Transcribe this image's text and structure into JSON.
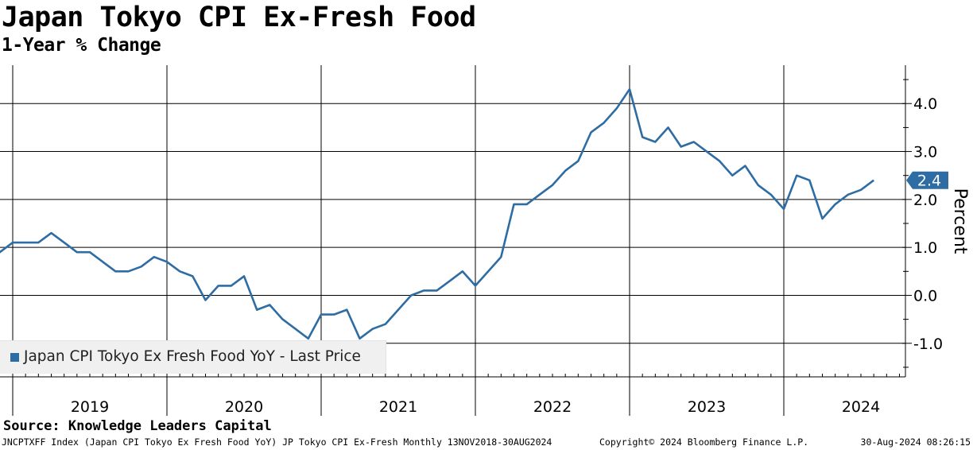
{
  "header": {
    "title": "Japan Tokyo CPI Ex-Fresh Food",
    "subtitle": "1-Year % Change"
  },
  "footer": {
    "source": "Source: Knowledge Leaders Capital",
    "ticker_line": "JNCPTXFF Index (Japan CPI Tokyo Ex Fresh Food YoY) JP Tokyo CPI Ex-Fresh  Monthly 13NOV2018-30AUG2024",
    "copyright": "Copyright© 2024 Bloomberg Finance L.P.",
    "timestamp": "30-Aug-2024 08:26:15"
  },
  "colors": {
    "series": "#2e6da4",
    "grid": "#000000",
    "legend_bg": "#f0f0f0"
  },
  "legend": {
    "label": "Japan CPI Tokyo Ex Fresh Food YoY - Last Price",
    "placement": "bottom-left"
  },
  "chart_data": {
    "type": "line",
    "title": "Japan Tokyo CPI Ex-Fresh Food",
    "subtitle": "1-Year % Change",
    "ylabel": "Percent",
    "xlabel": "",
    "ylim": [
      -1.7,
      4.8
    ],
    "yticks": [
      -1.0,
      0.0,
      1.0,
      2.0,
      3.0,
      4.0
    ],
    "ytick_labels": [
      "-1.0",
      "0.0",
      "1.0",
      "2.0",
      "3.0",
      "4.0"
    ],
    "year_labels": [
      "2019",
      "2020",
      "2021",
      "2022",
      "2023",
      "2024"
    ],
    "grid": true,
    "last_value_label": "2.4",
    "series": [
      {
        "name": "Japan CPI Tokyo Ex Fresh Food YoY - Last Price",
        "x": [
          "2018-11",
          "2018-12",
          "2019-01",
          "2019-02",
          "2019-03",
          "2019-04",
          "2019-05",
          "2019-06",
          "2019-07",
          "2019-08",
          "2019-09",
          "2019-10",
          "2019-11",
          "2019-12",
          "2020-01",
          "2020-02",
          "2020-03",
          "2020-04",
          "2020-05",
          "2020-06",
          "2020-07",
          "2020-08",
          "2020-09",
          "2020-10",
          "2020-11",
          "2020-12",
          "2021-01",
          "2021-02",
          "2021-03",
          "2021-04",
          "2021-05",
          "2021-06",
          "2021-07",
          "2021-08",
          "2021-09",
          "2021-10",
          "2021-11",
          "2021-12",
          "2022-01",
          "2022-02",
          "2022-03",
          "2022-04",
          "2022-05",
          "2022-06",
          "2022-07",
          "2022-08",
          "2022-09",
          "2022-10",
          "2022-11",
          "2022-12",
          "2023-01",
          "2023-02",
          "2023-03",
          "2023-04",
          "2023-05",
          "2023-06",
          "2023-07",
          "2023-08",
          "2023-09",
          "2023-10",
          "2023-11",
          "2023-12",
          "2024-01",
          "2024-02",
          "2024-03",
          "2024-04",
          "2024-05",
          "2024-06",
          "2024-07",
          "2024-08"
        ],
        "values": [
          1.0,
          0.9,
          1.1,
          1.1,
          1.1,
          1.3,
          1.1,
          0.9,
          0.9,
          0.7,
          0.5,
          0.5,
          0.6,
          0.8,
          0.7,
          0.5,
          0.4,
          -0.1,
          0.2,
          0.2,
          0.4,
          -0.3,
          -0.2,
          -0.5,
          -0.7,
          -0.9,
          -0.4,
          -0.4,
          -0.3,
          -0.9,
          -0.7,
          -0.6,
          -0.3,
          0.0,
          0.1,
          0.1,
          0.3,
          0.5,
          0.2,
          0.5,
          0.8,
          1.9,
          1.9,
          2.1,
          2.3,
          2.6,
          2.8,
          3.4,
          3.6,
          3.9,
          4.3,
          3.3,
          3.2,
          3.5,
          3.1,
          3.2,
          3.0,
          2.8,
          2.5,
          2.7,
          2.3,
          2.1,
          1.8,
          2.5,
          2.4,
          1.6,
          1.9,
          2.1,
          2.2,
          2.4
        ]
      }
    ]
  }
}
